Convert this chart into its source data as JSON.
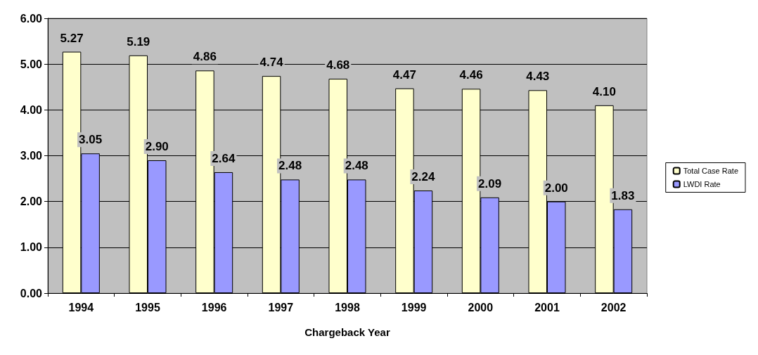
{
  "chart_data": {
    "type": "bar",
    "xlabel": "Chargeback Year",
    "categories": [
      "1994",
      "1995",
      "1996",
      "1997",
      "1998",
      "1999",
      "2000",
      "2001",
      "2002"
    ],
    "series": [
      {
        "name": "Total Case Rate",
        "color": "#ffffcc",
        "values": [
          5.27,
          5.19,
          4.86,
          4.74,
          4.68,
          4.47,
          4.46,
          4.43,
          4.1
        ],
        "value_labels": [
          "5.27",
          "5.19",
          "4.86",
          "4.74",
          "4.68",
          "4.47",
          "4.46",
          "4.43",
          "4.10"
        ]
      },
      {
        "name": "LWDI Rate",
        "color": "#9999ff",
        "values": [
          3.05,
          2.9,
          2.64,
          2.48,
          2.48,
          2.24,
          2.09,
          2.0,
          1.83
        ],
        "value_labels": [
          "3.05",
          "2.90",
          "2.64",
          "2.48",
          "2.48",
          "2.24",
          "2.09",
          "2.00",
          "1.83"
        ]
      }
    ],
    "ylim": [
      0,
      6
    ],
    "yticks": [
      {
        "value": 0,
        "label": "0.00"
      },
      {
        "value": 1,
        "label": "1.00"
      },
      {
        "value": 2,
        "label": "2.00"
      },
      {
        "value": 3,
        "label": "3.00"
      },
      {
        "value": 4,
        "label": "4.00"
      },
      {
        "value": 5,
        "label": "5.00"
      },
      {
        "value": 6,
        "label": "6.00"
      }
    ],
    "grid": "y",
    "legend": "right"
  }
}
